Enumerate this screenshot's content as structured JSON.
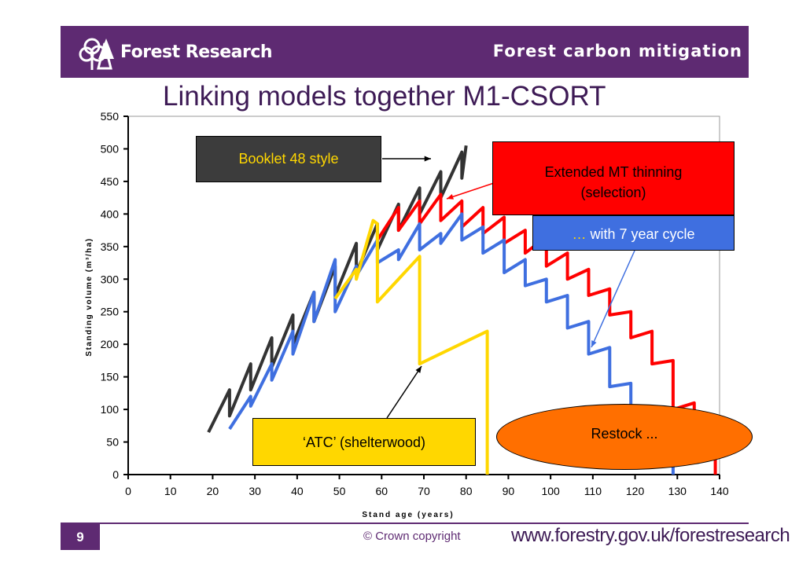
{
  "header": {
    "brand": "Forest Research",
    "topic": "Forest carbon mitigation",
    "bg_color": "#5e2a72"
  },
  "slide": {
    "title": "Linking models together M1-CSORT",
    "page_number": "9"
  },
  "footer": {
    "copyright": "© Crown copyright",
    "website": "www.forestry.gov.uk/forestresearch"
  },
  "callouts": {
    "booklet": "Booklet 48 style",
    "extended_line1": "Extended MT thinning",
    "extended_line2": "(selection)",
    "cycle_dots": "…",
    "cycle_text": " with 7 year cycle",
    "atc": "‘ATC’ (shelterwood)",
    "restock": "Restock ..."
  },
  "chart_data": {
    "type": "line",
    "xlabel": "Stand age (years)",
    "ylabel": "Standing volume (m³/ha)",
    "xlim": [
      0,
      140
    ],
    "ylim": [
      0,
      550
    ],
    "x_ticks": [
      0,
      10,
      20,
      30,
      40,
      50,
      60,
      70,
      80,
      90,
      100,
      110,
      120,
      130,
      140
    ],
    "y_ticks": [
      0,
      50,
      100,
      150,
      200,
      250,
      300,
      350,
      400,
      450,
      500,
      550
    ],
    "grid": false,
    "series": [
      {
        "color": "#333333",
        "points": [
          [
            19,
            65
          ],
          [
            24,
            130
          ],
          [
            24,
            90
          ],
          [
            29,
            170
          ],
          [
            29,
            130
          ],
          [
            34,
            210
          ],
          [
            34,
            165
          ],
          [
            39,
            245
          ],
          [
            39,
            200
          ],
          [
            44,
            280
          ],
          [
            44,
            235
          ],
          [
            49,
            320
          ],
          [
            49,
            275
          ],
          [
            54,
            355
          ],
          [
            54,
            310
          ],
          [
            59,
            385
          ],
          [
            59,
            345
          ],
          [
            64,
            415
          ],
          [
            64,
            375
          ],
          [
            69,
            440
          ],
          [
            69,
            400
          ],
          [
            74,
            465
          ],
          [
            74,
            425
          ],
          [
            79,
            495
          ],
          [
            79,
            455
          ],
          [
            80,
            505
          ]
        ]
      },
      {
        "color": "#ff0000",
        "points": [
          [
            59,
            345
          ],
          [
            59,
            360
          ],
          [
            64,
            410
          ],
          [
            64,
            375
          ],
          [
            69,
            420
          ],
          [
            69,
            385
          ],
          [
            74,
            430
          ],
          [
            74,
            390
          ],
          [
            79,
            420
          ],
          [
            79,
            380
          ],
          [
            84,
            410
          ],
          [
            84,
            370
          ],
          [
            89,
            395
          ],
          [
            89,
            355
          ],
          [
            94,
            375
          ],
          [
            94,
            340
          ],
          [
            99,
            365
          ],
          [
            99,
            320
          ],
          [
            104,
            340
          ],
          [
            104,
            300
          ],
          [
            109,
            315
          ],
          [
            109,
            275
          ],
          [
            114,
            285
          ],
          [
            114,
            245
          ],
          [
            119,
            250
          ],
          [
            119,
            210
          ],
          [
            124,
            220
          ],
          [
            124,
            170
          ],
          [
            129,
            175
          ],
          [
            129,
            100
          ],
          [
            134,
            110
          ],
          [
            134,
            55
          ],
          [
            139,
            60
          ],
          [
            139,
            0
          ]
        ]
      },
      {
        "color": "#3f6fe0",
        "points": [
          [
            24,
            70
          ],
          [
            29,
            120
          ],
          [
            29,
            105
          ],
          [
            34,
            170
          ],
          [
            34,
            145
          ],
          [
            39,
            220
          ],
          [
            39,
            185
          ],
          [
            44,
            280
          ],
          [
            44,
            235
          ],
          [
            49,
            330
          ],
          [
            49,
            250
          ],
          [
            54,
            320
          ],
          [
            54,
            305
          ],
          [
            59,
            360
          ],
          [
            59,
            325
          ],
          [
            64,
            345
          ],
          [
            64,
            330
          ],
          [
            69,
            385
          ],
          [
            69,
            345
          ],
          [
            74,
            370
          ],
          [
            74,
            355
          ],
          [
            79,
            400
          ],
          [
            79,
            360
          ],
          [
            84,
            380
          ],
          [
            84,
            340
          ],
          [
            89,
            360
          ],
          [
            89,
            310
          ],
          [
            94,
            330
          ],
          [
            94,
            290
          ],
          [
            99,
            300
          ],
          [
            99,
            265
          ],
          [
            104,
            275
          ],
          [
            104,
            225
          ],
          [
            109,
            235
          ],
          [
            109,
            185
          ],
          [
            114,
            195
          ],
          [
            114,
            135
          ],
          [
            119,
            140
          ],
          [
            119,
            95
          ],
          [
            124,
            100
          ],
          [
            124,
            50
          ],
          [
            129,
            55
          ],
          [
            129,
            0
          ]
        ]
      },
      {
        "color": "#ffd700",
        "points": [
          [
            49,
            270
          ],
          [
            54,
            315
          ],
          [
            54,
            300
          ],
          [
            58,
            390
          ],
          [
            59,
            385
          ],
          [
            59,
            265
          ],
          [
            69,
            335
          ],
          [
            69,
            170
          ],
          [
            85,
            220
          ],
          [
            85,
            0
          ]
        ]
      }
    ]
  }
}
